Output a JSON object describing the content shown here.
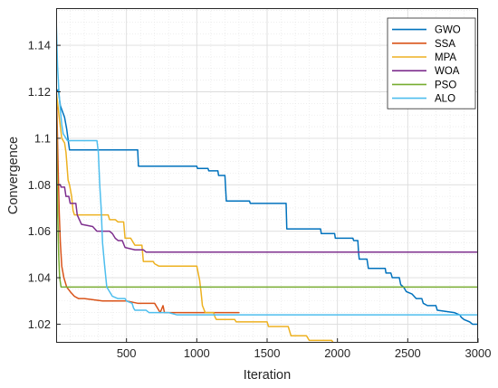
{
  "chart_data": {
    "type": "line",
    "title": "",
    "xlabel": "Iteration",
    "ylabel": "Convergence",
    "xlim": [
      0,
      3000
    ],
    "ylim": [
      1.012,
      1.156
    ],
    "xticks": [
      500,
      1000,
      1500,
      2000,
      2500,
      3000
    ],
    "xtick_labels": [
      "500",
      "1000",
      "1500",
      "2000",
      "2500",
      "3000"
    ],
    "yticks": [
      1.02,
      1.04,
      1.06,
      1.08,
      1.1,
      1.12,
      1.14
    ],
    "ytick_labels": [
      "1.02",
      "1.04",
      "1.06",
      "1.08",
      "1.1",
      "1.12",
      "1.14"
    ],
    "grid": true,
    "legend_position": "top-right",
    "series": [
      {
        "name": "GWO",
        "color": "#0072BD",
        "points": [
          [
            1,
            1.12
          ],
          [
            15,
            1.121
          ],
          [
            30,
            1.114
          ],
          [
            60,
            1.109
          ],
          [
            75,
            1.104
          ],
          [
            95,
            1.095
          ],
          [
            580,
            1.095
          ],
          [
            585,
            1.088
          ],
          [
            1000,
            1.088
          ],
          [
            1005,
            1.087
          ],
          [
            1080,
            1.087
          ],
          [
            1085,
            1.086
          ],
          [
            1150,
            1.086
          ],
          [
            1155,
            1.084
          ],
          [
            1200,
            1.084
          ],
          [
            1210,
            1.073
          ],
          [
            1375,
            1.073
          ],
          [
            1380,
            1.072
          ],
          [
            1635,
            1.072
          ],
          [
            1640,
            1.061
          ],
          [
            1880,
            1.061
          ],
          [
            1885,
            1.059
          ],
          [
            1980,
            1.059
          ],
          [
            1985,
            1.057
          ],
          [
            2110,
            1.057
          ],
          [
            2115,
            1.056
          ],
          [
            2145,
            1.056
          ],
          [
            2150,
            1.051
          ],
          [
            2155,
            1.048
          ],
          [
            2210,
            1.048
          ],
          [
            2220,
            1.044
          ],
          [
            2340,
            1.044
          ],
          [
            2345,
            1.042
          ],
          [
            2380,
            1.042
          ],
          [
            2390,
            1.04
          ],
          [
            2440,
            1.04
          ],
          [
            2450,
            1.037
          ],
          [
            2470,
            1.036
          ],
          [
            2480,
            1.035
          ],
          [
            2490,
            1.034
          ],
          [
            2530,
            1.033
          ],
          [
            2560,
            1.031
          ],
          [
            2600,
            1.031
          ],
          [
            2610,
            1.029
          ],
          [
            2640,
            1.028
          ],
          [
            2700,
            1.028
          ],
          [
            2710,
            1.026
          ],
          [
            2830,
            1.025
          ],
          [
            2870,
            1.024
          ],
          [
            2880,
            1.023
          ],
          [
            2900,
            1.022
          ],
          [
            2940,
            1.021
          ],
          [
            2960,
            1.02
          ],
          [
            3000,
            1.02
          ]
        ]
      },
      {
        "name": "SSA",
        "color": "#D95319",
        "points": [
          [
            1,
            1.122
          ],
          [
            8,
            1.105
          ],
          [
            15,
            1.085
          ],
          [
            22,
            1.068
          ],
          [
            30,
            1.055
          ],
          [
            40,
            1.045
          ],
          [
            55,
            1.04
          ],
          [
            75,
            1.036
          ],
          [
            100,
            1.034
          ],
          [
            130,
            1.032
          ],
          [
            160,
            1.031
          ],
          [
            200,
            1.031
          ],
          [
            330,
            1.03
          ],
          [
            500,
            1.03
          ],
          [
            580,
            1.029
          ],
          [
            700,
            1.029
          ],
          [
            740,
            1.025
          ],
          [
            760,
            1.028
          ],
          [
            770,
            1.025
          ],
          [
            1300,
            1.025
          ]
        ]
      },
      {
        "name": "MPA",
        "color": "#EDB120",
        "points": [
          [
            1,
            1.12
          ],
          [
            20,
            1.11
          ],
          [
            40,
            1.1
          ],
          [
            60,
            1.098
          ],
          [
            70,
            1.094
          ],
          [
            85,
            1.082
          ],
          [
            95,
            1.08
          ],
          [
            110,
            1.075
          ],
          [
            120,
            1.069
          ],
          [
            130,
            1.067
          ],
          [
            370,
            1.067
          ],
          [
            380,
            1.065
          ],
          [
            420,
            1.065
          ],
          [
            440,
            1.064
          ],
          [
            480,
            1.064
          ],
          [
            490,
            1.057
          ],
          [
            530,
            1.057
          ],
          [
            560,
            1.054
          ],
          [
            610,
            1.054
          ],
          [
            620,
            1.047
          ],
          [
            690,
            1.047
          ],
          [
            700,
            1.046
          ],
          [
            730,
            1.045
          ],
          [
            1000,
            1.045
          ],
          [
            1010,
            1.042
          ],
          [
            1020,
            1.039
          ],
          [
            1030,
            1.034
          ],
          [
            1040,
            1.028
          ],
          [
            1060,
            1.025
          ],
          [
            1080,
            1.025
          ],
          [
            1120,
            1.025
          ],
          [
            1130,
            1.023
          ],
          [
            1140,
            1.022
          ],
          [
            1270,
            1.022
          ],
          [
            1280,
            1.021
          ],
          [
            1500,
            1.021
          ],
          [
            1510,
            1.019
          ],
          [
            1650,
            1.019
          ],
          [
            1670,
            1.015
          ],
          [
            1780,
            1.015
          ],
          [
            1800,
            1.013
          ],
          [
            1960,
            1.013
          ],
          [
            1970,
            1.012
          ],
          [
            3000,
            1.012
          ]
        ]
      },
      {
        "name": "WOA",
        "color": "#7E2F8E",
        "points": [
          [
            1,
            1.156
          ],
          [
            2,
            1.08
          ],
          [
            30,
            1.08
          ],
          [
            35,
            1.079
          ],
          [
            60,
            1.079
          ],
          [
            70,
            1.075
          ],
          [
            90,
            1.075
          ],
          [
            100,
            1.072
          ],
          [
            140,
            1.072
          ],
          [
            150,
            1.067
          ],
          [
            180,
            1.063
          ],
          [
            260,
            1.062
          ],
          [
            290,
            1.06
          ],
          [
            380,
            1.06
          ],
          [
            400,
            1.059
          ],
          [
            420,
            1.057
          ],
          [
            440,
            1.056
          ],
          [
            470,
            1.056
          ],
          [
            490,
            1.053
          ],
          [
            560,
            1.052
          ],
          [
            620,
            1.052
          ],
          [
            640,
            1.051
          ],
          [
            3000,
            1.051
          ]
        ]
      },
      {
        "name": "PSO",
        "color": "#77AC30",
        "points": [
          [
            1,
            1.12
          ],
          [
            5,
            1.09
          ],
          [
            10,
            1.07
          ],
          [
            18,
            1.05
          ],
          [
            25,
            1.04
          ],
          [
            35,
            1.036
          ],
          [
            3000,
            1.036
          ]
        ]
      },
      {
        "name": "ALO",
        "color": "#4DBEEE",
        "points": [
          [
            1,
            1.15
          ],
          [
            10,
            1.131
          ],
          [
            20,
            1.12
          ],
          [
            30,
            1.112
          ],
          [
            40,
            1.106
          ],
          [
            50,
            1.102
          ],
          [
            60,
            1.101
          ],
          [
            80,
            1.099
          ],
          [
            290,
            1.099
          ],
          [
            300,
            1.094
          ],
          [
            310,
            1.08
          ],
          [
            320,
            1.07
          ],
          [
            330,
            1.055
          ],
          [
            345,
            1.045
          ],
          [
            360,
            1.036
          ],
          [
            380,
            1.034
          ],
          [
            400,
            1.032
          ],
          [
            440,
            1.031
          ],
          [
            490,
            1.031
          ],
          [
            500,
            1.03
          ],
          [
            540,
            1.029
          ],
          [
            550,
            1.027
          ],
          [
            560,
            1.026
          ],
          [
            640,
            1.026
          ],
          [
            660,
            1.025
          ],
          [
            800,
            1.025
          ],
          [
            860,
            1.024
          ],
          [
            3000,
            1.024
          ]
        ]
      }
    ]
  }
}
